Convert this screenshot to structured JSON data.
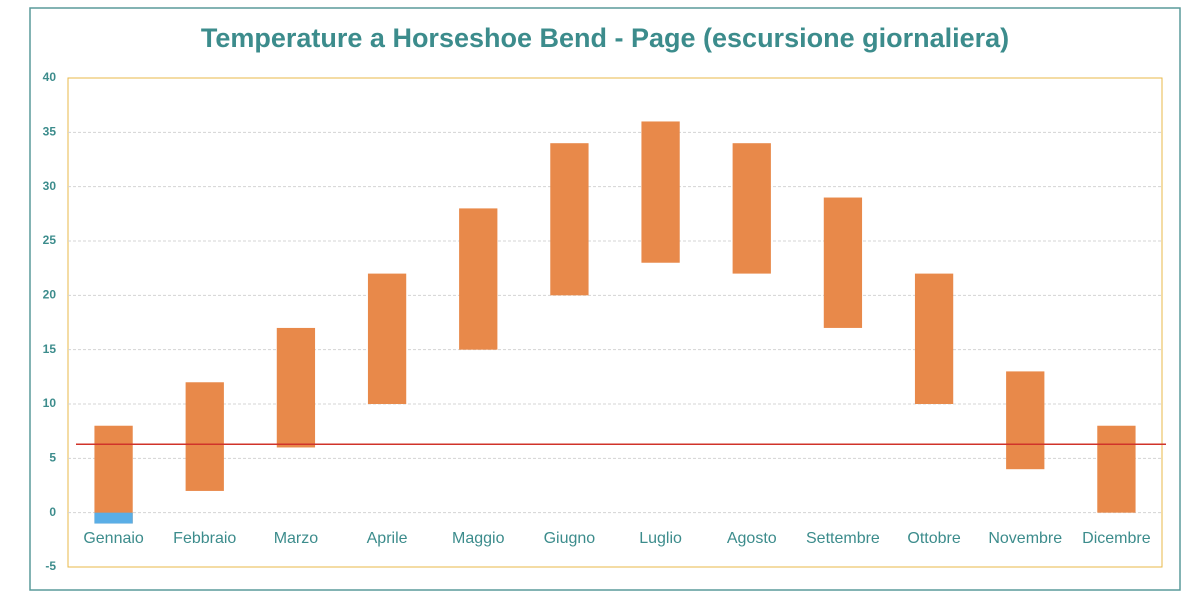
{
  "chart_data": {
    "type": "range_bar",
    "title": "Temperature a Horseshoe Bend - Page (escursione giornaliera)",
    "categories": [
      "Gennaio",
      "Febbraio",
      "Marzo",
      "Aprile",
      "Maggio",
      "Giugno",
      "Luglio",
      "Agosto",
      "Settembre",
      "Ottobre",
      "Novembre",
      "Dicembre"
    ],
    "low": [
      -1,
      2,
      6,
      10,
      15,
      20,
      23,
      22,
      17,
      10,
      4,
      0
    ],
    "high": [
      8,
      12,
      17,
      22,
      28,
      34,
      36,
      34,
      29,
      22,
      13,
      8
    ],
    "color": "#e8894a",
    "negative_color": "#5aaee6",
    "reference_line": 6.3,
    "reference_color": "#d0332a",
    "ylim": [
      -5,
      40
    ],
    "yticks": [
      -5,
      0,
      5,
      10,
      15,
      20,
      25,
      30,
      35,
      40
    ],
    "grid": true
  }
}
